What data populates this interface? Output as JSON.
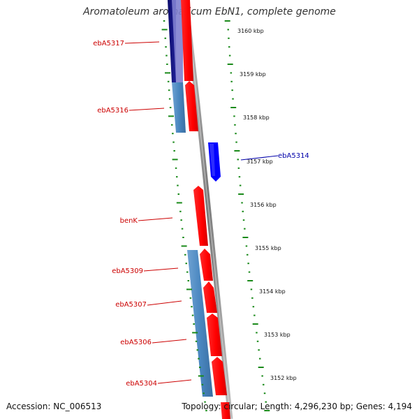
{
  "title": "Aromatoleum aromaticum EbN1, complete genome",
  "footer": {
    "accession": "Accession: NC_006513",
    "topology": "Topology: circular; Length: 4,296,230 bp; Genes: 4,194"
  },
  "colors": {
    "forward_gene": "#ff0000",
    "reverse_gene_blue": "#0000ff",
    "steelblue_feature": "#4a87c0",
    "navy_feature": "#1a1a80",
    "label_red": "#cc0000",
    "label_blue": "#0000aa",
    "tick_green": "#1a8a1a",
    "backbone": "#999999"
  },
  "kbp_ticks": [
    {
      "label": "3160 kbp",
      "kbp": 3160
    },
    {
      "label": "3159 kbp",
      "kbp": 3159
    },
    {
      "label": "3158 kbp",
      "kbp": 3158
    },
    {
      "label": "3157 kbp",
      "kbp": 3157
    },
    {
      "label": "3156 kbp",
      "kbp": 3156
    },
    {
      "label": "3155 kbp",
      "kbp": 3155
    },
    {
      "label": "3154 kbp",
      "kbp": 3154
    },
    {
      "label": "3153 kbp",
      "kbp": 3153
    },
    {
      "label": "3152 kbp",
      "kbp": 3152
    }
  ],
  "gene_labels": [
    {
      "name": "ebA5317",
      "color": "red"
    },
    {
      "name": "ebA5316",
      "color": "red"
    },
    {
      "name": "ebA5314",
      "color": "blue"
    },
    {
      "name": "benK",
      "color": "red"
    },
    {
      "name": "ebA5309",
      "color": "red"
    },
    {
      "name": "ebA5307",
      "color": "red"
    },
    {
      "name": "ebA5306",
      "color": "red"
    },
    {
      "name": "ebA5304",
      "color": "red"
    }
  ]
}
